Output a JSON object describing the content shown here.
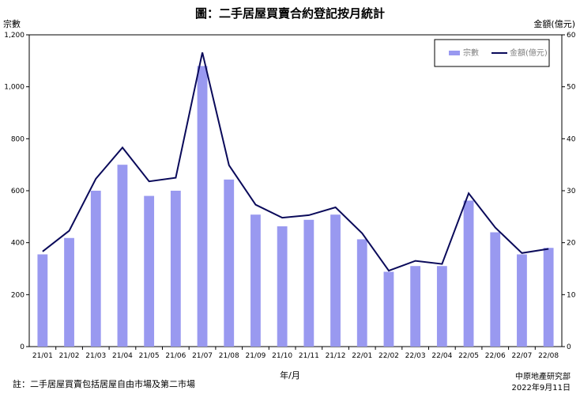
{
  "title": "圖：二手居屋買賣合約登記按月統計",
  "note": "註：二手居屋買賣包括居屋自由市場及第二市場",
  "source": "中原地產研究部",
  "date": "2022年9月11日",
  "colors": {
    "bar": "#9999f0",
    "line": "#0a0a5a"
  },
  "chart_data": {
    "type": "bar",
    "categories": [
      "21/01",
      "21/02",
      "21/03",
      "21/04",
      "21/05",
      "21/06",
      "21/07",
      "21/08",
      "21/09",
      "21/10",
      "21/11",
      "21/12",
      "22/01",
      "22/02",
      "22/03",
      "22/04",
      "22/05",
      "22/06",
      "22/07",
      "22/08"
    ],
    "xlabel": "年/月",
    "ylabel": "宗數",
    "ylabel_right": "金額(億元)",
    "ylim": [
      0,
      1200
    ],
    "ylim_right": [
      0,
      60
    ],
    "yticks": [
      "0",
      "200",
      "400",
      "600",
      "800",
      "1,000",
      "1,200"
    ],
    "yticks_right": [
      "0",
      "10",
      "20",
      "30",
      "40",
      "50",
      "60"
    ],
    "legend_position": "top-right",
    "series": [
      {
        "name": "宗數",
        "type": "bar",
        "axis": "left",
        "values": [
          355,
          418,
          600,
          700,
          580,
          600,
          1080,
          643,
          508,
          463,
          488,
          508,
          413,
          288,
          310,
          310,
          562,
          440,
          355,
          380
        ]
      },
      {
        "name": "金額(億元)",
        "type": "line",
        "axis": "right",
        "values": [
          18.3,
          22.3,
          32.3,
          38.3,
          31.8,
          32.5,
          56.6,
          34.9,
          27.3,
          24.8,
          25.3,
          26.8,
          21.8,
          14.6,
          16.5,
          15.9,
          29.5,
          22.9,
          18.0,
          18.8
        ]
      }
    ]
  }
}
